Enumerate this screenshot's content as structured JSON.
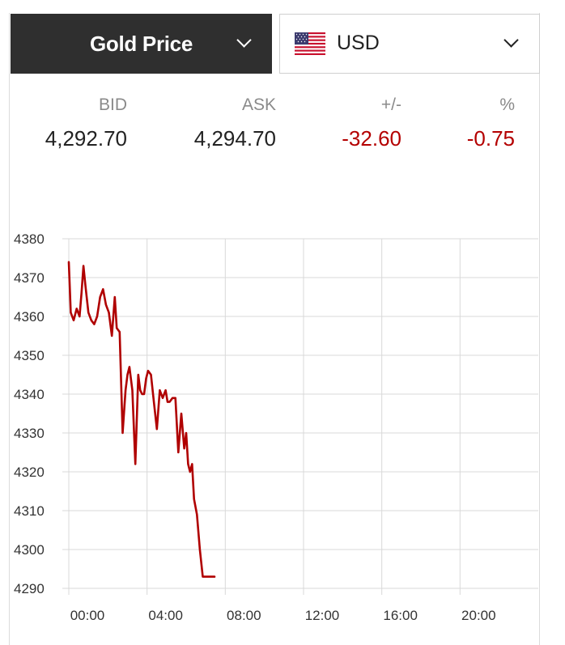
{
  "header": {
    "metal_label": "Gold Price",
    "currency_label": "USD",
    "currency_flag_icon": "us-flag-icon"
  },
  "quotes": {
    "bid_label": "BID",
    "bid_value": "4,292.70",
    "ask_label": "ASK",
    "ask_value": "4,294.70",
    "change_label": "+/-",
    "change_value": "-32.60",
    "percent_label": "%",
    "percent_value": "-0.75"
  },
  "colors": {
    "header_dark": "#2f2f2f",
    "negative": "#b40000",
    "line": "#b00000",
    "grid": "#d9d9d9"
  },
  "chart_data": {
    "type": "line",
    "title": "",
    "xlabel": "",
    "ylabel": "",
    "ylim": [
      4290,
      4380
    ],
    "y_ticks": [
      "4380",
      "4370",
      "4360",
      "4350",
      "4340",
      "4330",
      "4320",
      "4310",
      "4300",
      "4290"
    ],
    "x_ticks": [
      "00:00",
      "04:00",
      "08:00",
      "12:00",
      "16:00",
      "20:00"
    ],
    "xlim_hours": [
      0,
      24
    ],
    "grid": true,
    "series": [
      {
        "x": [
          0.0,
          0.1,
          0.25,
          0.4,
          0.55,
          0.65,
          0.75,
          0.85,
          1.0,
          1.15,
          1.3,
          1.45,
          1.6,
          1.75,
          1.9,
          2.05,
          2.2,
          2.35,
          2.45,
          2.6,
          2.75,
          2.9,
          3.0,
          3.1,
          3.25,
          3.4,
          3.55,
          3.65,
          3.75,
          3.85,
          3.95,
          4.05,
          4.2,
          4.35,
          4.5,
          4.65,
          4.8,
          4.95,
          5.05,
          5.15,
          5.3,
          5.45,
          5.6,
          5.75,
          5.9,
          6.0,
          6.1,
          6.2,
          6.3,
          6.4,
          6.55,
          6.7,
          6.85,
          6.95,
          7.1,
          7.3,
          7.45
        ],
        "y": [
          4374,
          4361,
          4359,
          4362,
          4360,
          4366,
          4373,
          4368,
          4361,
          4359,
          4358,
          4360,
          4365,
          4367,
          4363,
          4361,
          4355,
          4365,
          4357,
          4356,
          4330,
          4341,
          4345,
          4347,
          4341,
          4322,
          4345,
          4341,
          4340,
          4340,
          4344,
          4346,
          4345,
          4338,
          4331,
          4341,
          4339,
          4341,
          4338,
          4338,
          4339,
          4339,
          4325,
          4335,
          4326,
          4330,
          4322,
          4320,
          4322,
          4313,
          4309,
          4300,
          4293,
          4293,
          4293,
          4293,
          4293
        ]
      }
    ]
  }
}
